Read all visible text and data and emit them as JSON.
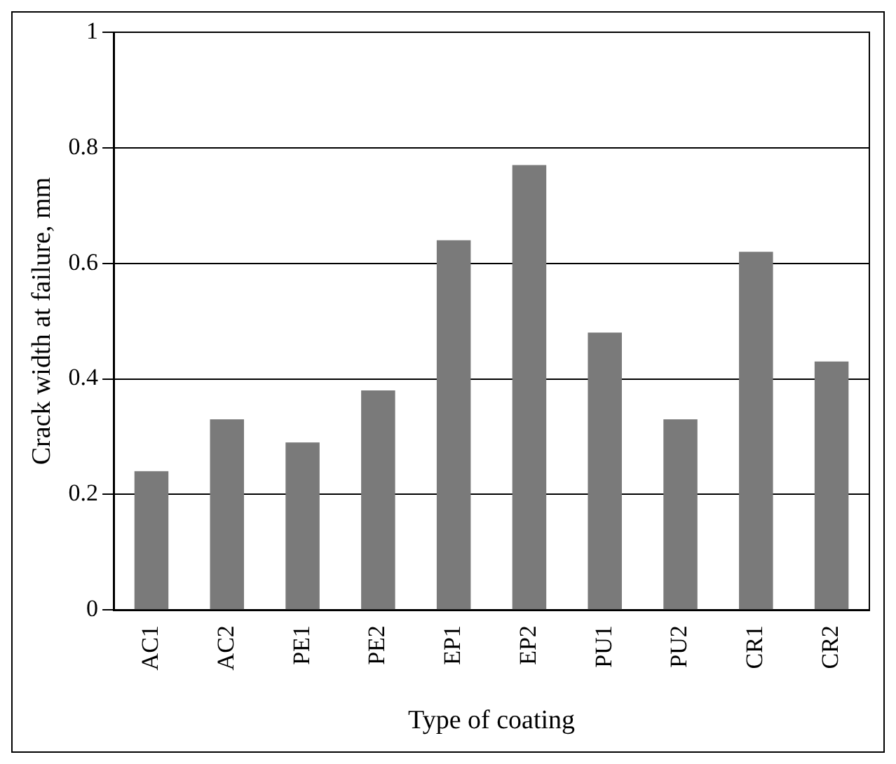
{
  "chart_data": {
    "type": "bar",
    "xlabel": "Type of coating",
    "ylabel": "Crack width at failure, mm",
    "categories": [
      "AC1",
      "AC2",
      "PE1",
      "PE2",
      "EP1",
      "EP2",
      "PU1",
      "PU2",
      "CR1",
      "CR2"
    ],
    "values": [
      0.24,
      0.33,
      0.29,
      0.38,
      0.64,
      0.77,
      0.48,
      0.33,
      0.62,
      0.43
    ],
    "color": "#7a7a7a",
    "ylim": [
      0,
      1
    ],
    "yticks": [
      0,
      0.2,
      0.4,
      0.6,
      0.8,
      1
    ],
    "grid": "y",
    "legend": false
  }
}
